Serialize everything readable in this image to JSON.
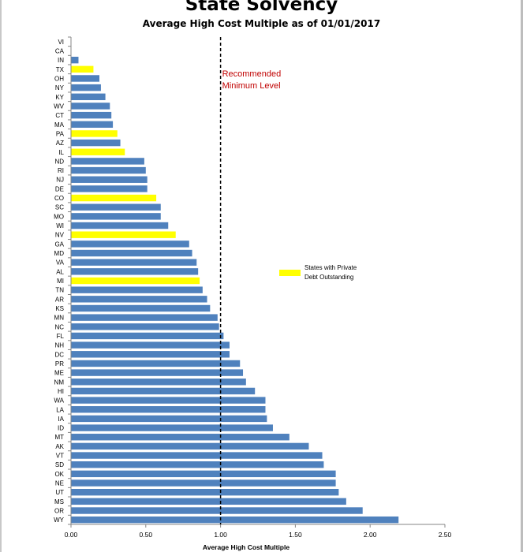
{
  "chart_data": {
    "type": "bar",
    "orientation": "horizontal",
    "title": "State Solvency",
    "subtitle": "Average High Cost Multiple as of 01/01/2017",
    "xlabel": "Average High Cost Multiple",
    "xlim": [
      0,
      2.5
    ],
    "xticks": [
      "0.00",
      "0.50",
      "1.00",
      "1.50",
      "2.00",
      "2.50"
    ],
    "grid": false,
    "colors": {
      "default": "#4f81bd",
      "highlight": "#ffff00",
      "reference": "#000000",
      "reference_text": "#c00000"
    },
    "reference_line": {
      "value": 1.0,
      "label_lines": [
        "Recommended",
        "Minimum Level"
      ]
    },
    "legend": {
      "placement": "right",
      "entries": [
        {
          "label_lines": [
            "States with Private",
            "Debt Outstanding"
          ],
          "color": "#ffff00"
        }
      ]
    },
    "categories": [
      "VI",
      "CA",
      "IN",
      "TX",
      "OH",
      "NY",
      "KY",
      "WV",
      "CT",
      "MA",
      "PA",
      "AZ",
      "IL",
      "ND",
      "RI",
      "NJ",
      "DE",
      "CO",
      "SC",
      "MO",
      "WI",
      "NV",
      "GA",
      "MD",
      "VA",
      "AL",
      "MI",
      "TN",
      "AR",
      "KS",
      "MN",
      "NC",
      "FL",
      "NH",
      "DC",
      "PR",
      "ME",
      "NM",
      "HI",
      "WA",
      "LA",
      "IA",
      "ID",
      "MT",
      "AK",
      "VT",
      "SD",
      "OK",
      "NE",
      "UT",
      "MS",
      "OR",
      "WY"
    ],
    "values": [
      0,
      0,
      0.05,
      0.15,
      0.19,
      0.2,
      0.23,
      0.26,
      0.27,
      0.28,
      0.31,
      0.33,
      0.36,
      0.49,
      0.5,
      0.51,
      0.51,
      0.57,
      0.6,
      0.6,
      0.65,
      0.7,
      0.79,
      0.81,
      0.84,
      0.85,
      0.86,
      0.88,
      0.91,
      0.93,
      0.98,
      0.99,
      1.02,
      1.06,
      1.06,
      1.13,
      1.15,
      1.17,
      1.23,
      1.3,
      1.3,
      1.31,
      1.35,
      1.46,
      1.59,
      1.68,
      1.69,
      1.77,
      1.77,
      1.79,
      1.84,
      1.95,
      2.19
    ],
    "highlighted": [
      "TX",
      "PA",
      "IL",
      "CO",
      "NV",
      "MI"
    ]
  }
}
